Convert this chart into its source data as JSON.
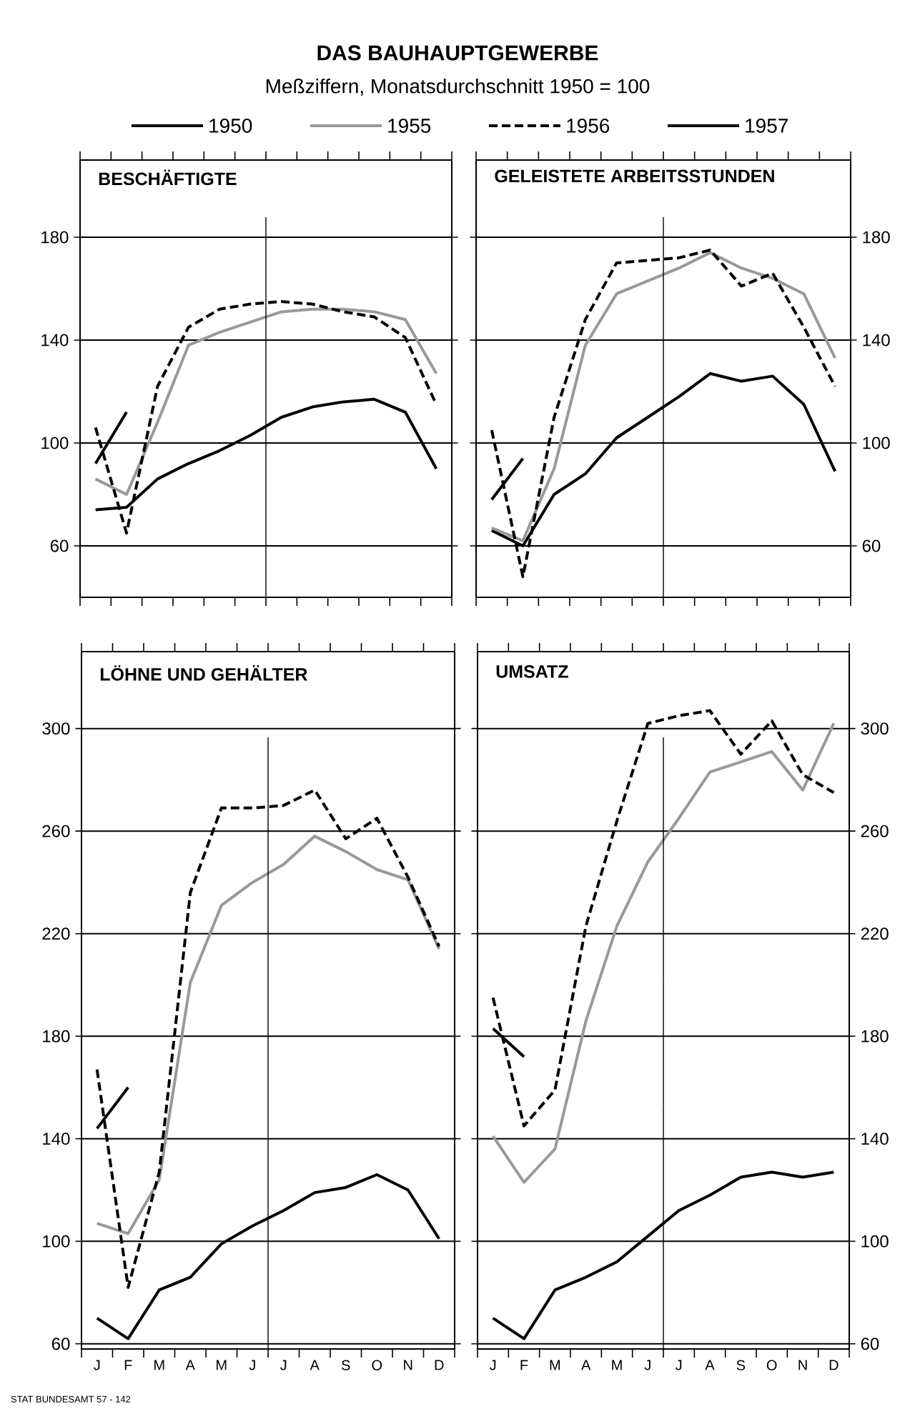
{
  "chart_data": [
    {
      "type": "line",
      "title": "BESCHÄFTIGTE",
      "annotations": [
        "DAS BAUHAUPTGEWERBE",
        "Meßziffern, Monatsdurchschnitt 1950 = 100"
      ],
      "categories": [
        null,
        null,
        null,
        null,
        null,
        null,
        null,
        null,
        null,
        null,
        null,
        null
      ],
      "ylim": [
        40,
        210
      ],
      "yticks": [
        60,
        100,
        140,
        180
      ],
      "grid": "y",
      "tick_labels": "y",
      "legend": "top",
      "series": [
        {
          "name": "1950",
          "color": "#000000",
          "values": [
            74,
            75,
            86,
            92,
            97,
            103,
            110,
            114,
            116,
            117,
            112,
            90
          ]
        },
        {
          "name": "1955",
          "color": "#999999",
          "values": [
            86,
            80,
            108,
            138,
            143,
            147,
            151,
            152,
            152,
            151,
            148,
            127
          ]
        },
        {
          "name": "1956",
          "color": "#000000",
          "line_style": "dashed",
          "values": [
            106,
            65,
            122,
            145,
            152,
            154,
            155,
            154,
            151,
            149,
            141,
            115
          ]
        },
        {
          "name": "1957",
          "color": "#000000",
          "values": [
            92,
            112,
            null,
            null,
            null,
            null,
            null,
            null,
            null,
            null,
            null,
            null
          ]
        }
      ]
    },
    {
      "type": "line",
      "title": "GELEISTETE ARBEITSSTUNDEN",
      "categories": [
        null,
        null,
        null,
        null,
        null,
        null,
        null,
        null,
        null,
        null,
        null,
        null
      ],
      "ylim": [
        40,
        210
      ],
      "yticks": [
        60,
        100,
        140,
        180
      ],
      "grid": "y",
      "tick_labels": "y",
      "series": [
        {
          "color": "#000000",
          "values": [
            66,
            60,
            80,
            88,
            102,
            110,
            118,
            127,
            124,
            126,
            115,
            89
          ]
        },
        {
          "color": "#999999",
          "values": [
            67,
            62,
            90,
            138,
            158,
            163,
            168,
            174,
            168,
            164,
            158,
            133
          ]
        },
        {
          "color": "#000000",
          "line_style": "dashed",
          "values": [
            105,
            48,
            110,
            148,
            170,
            171,
            172,
            175,
            161,
            166,
            145,
            122
          ]
        },
        {
          "color": "#000000",
          "values": [
            78,
            94,
            null,
            null,
            null,
            null,
            null,
            null,
            null,
            null,
            null,
            null
          ]
        }
      ]
    },
    {
      "type": "line",
      "title": "LÖHNE UND GEHÄLTER",
      "categories": [
        "J",
        "F",
        "M",
        "A",
        "M",
        "J",
        "J",
        "A",
        "S",
        "O",
        "N",
        "D"
      ],
      "ylim": [
        58,
        330
      ],
      "yticks": [
        60,
        100,
        140,
        180,
        220,
        260,
        300
      ],
      "grid": "y",
      "annotations": [
        "STAT BUNDESAMT 57 - 142"
      ],
      "series": [
        {
          "color": "#000000",
          "values": [
            70,
            62,
            81,
            86,
            99,
            106,
            112,
            119,
            121,
            126,
            120,
            101
          ]
        },
        {
          "color": "#999999",
          "values": [
            107,
            103,
            124,
            201,
            231,
            240,
            247,
            258,
            252,
            245,
            241,
            214
          ]
        },
        {
          "color": "#000000",
          "line_style": "dashed",
          "values": [
            167,
            82,
            127,
            236,
            269,
            269,
            270,
            276,
            257,
            265,
            242,
            215
          ]
        },
        {
          "color": "#000000",
          "values": [
            144,
            160,
            null,
            null,
            null,
            null,
            null,
            null,
            null,
            null,
            null,
            null
          ]
        }
      ]
    },
    {
      "type": "line",
      "title": "UMSATZ",
      "categories": [
        "J",
        "F",
        "M",
        "A",
        "M",
        "J",
        "J",
        "A",
        "S",
        "O",
        "N",
        "D"
      ],
      "ylim": [
        58,
        330
      ],
      "yticks": [
        60,
        100,
        140,
        180,
        220,
        260,
        300
      ],
      "grid": "y",
      "series": [
        {
          "color": "#000000",
          "values": [
            70,
            62,
            81,
            86,
            92,
            102,
            112,
            118,
            125,
            127,
            125,
            127
          ]
        },
        {
          "color": "#999999",
          "values": [
            141,
            123,
            136,
            186,
            223,
            248,
            265,
            283,
            287,
            291,
            276,
            302
          ]
        },
        {
          "color": "#000000",
          "line_style": "dashed",
          "values": [
            195,
            145,
            159,
            223,
            264,
            302,
            305,
            307,
            290,
            303,
            282,
            275
          ]
        },
        {
          "color": "#000000",
          "values": [
            183,
            172,
            null,
            null,
            null,
            null,
            null,
            null,
            null,
            null,
            null,
            null
          ]
        }
      ]
    }
  ]
}
